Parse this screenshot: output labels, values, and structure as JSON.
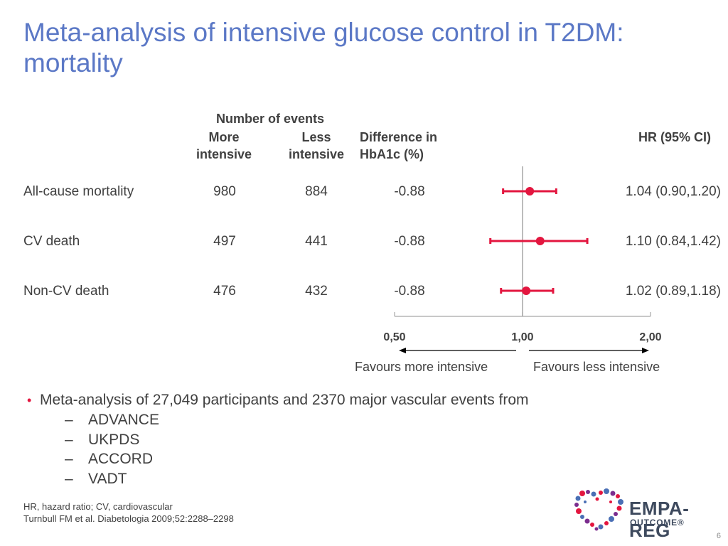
{
  "title": "Meta-analysis of intensive glucose control in T2DM: mortality",
  "headers": {
    "number_of_events": "Number of events",
    "more_intensive_1": "More",
    "more_intensive_2": "intensive",
    "less_intensive_1": "Less",
    "less_intensive_2": "intensive",
    "diff_1": "Difference in",
    "diff_2": "HbA1c (%)",
    "hr": "HR (95% CI)"
  },
  "rows": [
    {
      "label": "All-cause mortality",
      "more": "980",
      "less": "884",
      "diff": "-0.88",
      "hr_text": "1.04 (0.90,1.20)"
    },
    {
      "label": "CV death",
      "more": "497",
      "less": "441",
      "diff": "-0.88",
      "hr_text": "1.10 (0.84,1.42)"
    },
    {
      "label": "Non-CV death",
      "more": "476",
      "less": "432",
      "diff": "-0.88",
      "hr_text": "1.02 (0.89,1.18)"
    }
  ],
  "chart_data": {
    "type": "scatter",
    "scale": "log",
    "xlim": [
      0.5,
      2.0
    ],
    "reference": 1.0,
    "ticks": [
      "0,50",
      "1,00",
      "2,00"
    ],
    "tick_values": [
      0.5,
      1.0,
      2.0
    ],
    "categories": [
      "All-cause mortality",
      "CV death",
      "Non-CV death"
    ],
    "series": [
      {
        "hr": 1.04,
        "ci_low": 0.9,
        "ci_high": 1.2
      },
      {
        "hr": 1.1,
        "ci_low": 0.84,
        "ci_high": 1.42
      },
      {
        "hr": 1.02,
        "ci_low": 0.89,
        "ci_high": 1.18
      }
    ],
    "marker_color": "#e3163f",
    "left_label": "Favours more intensive",
    "right_label": "Favours less intensive"
  },
  "bullets": {
    "main": "Meta-analysis of 27,049 participants and 2370 major vascular events from",
    "dash": "–",
    "items": [
      "ADVANCE",
      "UKPDS",
      "ACCORD",
      "VADT"
    ]
  },
  "footnotes": {
    "abbrev": "HR, hazard ratio; CV, cardiovascular",
    "ref": "Turnbull FM et al. Diabetologia 2009;52:2288–2298"
  },
  "logo": {
    "line1": "EMPA-REG",
    "line2": "OUTCOME®"
  },
  "page_number": "6"
}
